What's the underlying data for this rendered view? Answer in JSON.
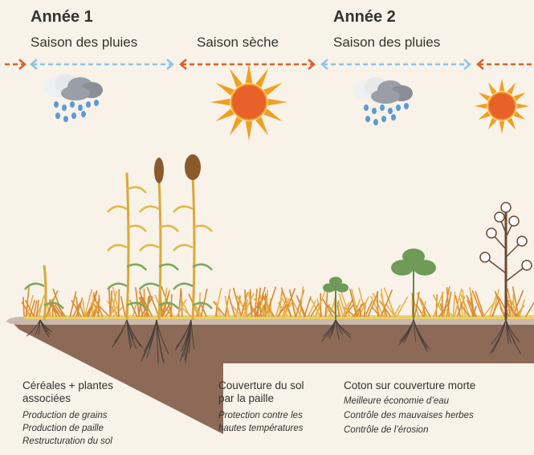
{
  "timeline": [
    {
      "year": "Année 1",
      "seasons": [
        "Saison des pluies",
        "Saison sèche"
      ]
    },
    {
      "year": "Année 2",
      "seasons": [
        "Saison des pluies"
      ]
    }
  ],
  "panels": [
    {
      "title_lines": [
        "Céréales + plantes",
        "associées"
      ],
      "notes": [
        "Production de grains",
        "Production de paille",
        "Restructuration du sol"
      ]
    },
    {
      "title_lines": [
        "Couverture du sol",
        "par la paille"
      ],
      "notes": [
        "Protection contre les",
        "hautes températures"
      ]
    },
    {
      "title_lines": [
        "Coton sur couverture morte"
      ],
      "notes": [
        "Meilleure économie d’eau",
        "Contrôle des mauvaises herbes",
        "Contrôle de l’érosion"
      ]
    }
  ]
}
